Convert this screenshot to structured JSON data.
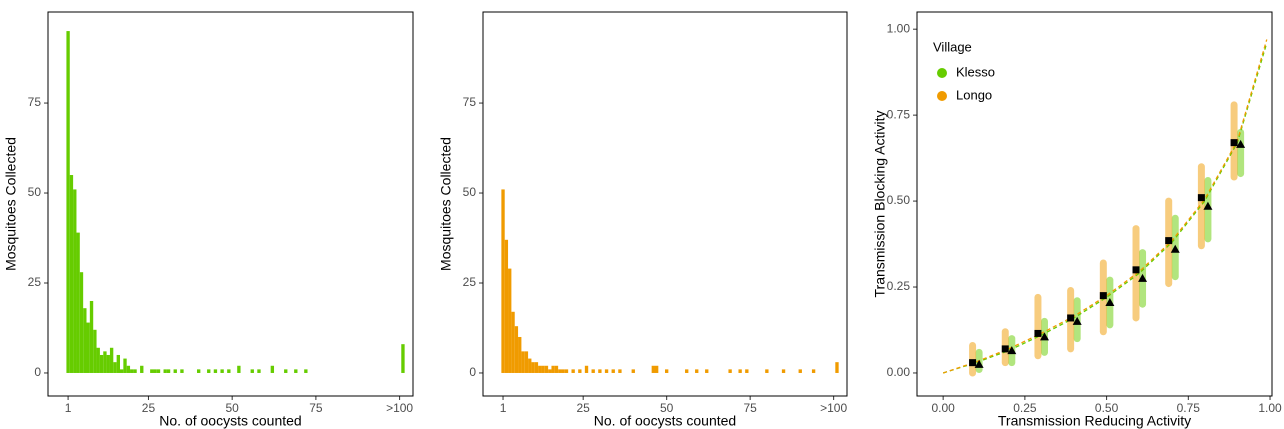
{
  "chart_data": [
    {
      "type": "bar",
      "color": "#66cc00",
      "x_label": "No. of oocysts counted",
      "y_label": "Mosquitoes Collected",
      "x": [
        1,
        2,
        3,
        4,
        5,
        6,
        7,
        8,
        9,
        10,
        11,
        12,
        13,
        14,
        15,
        16,
        17,
        18,
        19,
        20,
        21,
        23,
        26,
        27,
        28,
        30,
        31,
        33,
        35,
        40,
        43,
        45,
        47,
        49,
        52,
        56,
        58,
        62,
        66,
        69,
        72,
        101
      ],
      "values": [
        95,
        55,
        51,
        39,
        28,
        18,
        14,
        20,
        12,
        7,
        5,
        6,
        5,
        7,
        3,
        5,
        1,
        4,
        2,
        1,
        1,
        2,
        1,
        1,
        1,
        1,
        1,
        1,
        1,
        1,
        1,
        1,
        1,
        1,
        2,
        1,
        1,
        2,
        1,
        1,
        1,
        8
      ],
      "xlim": [
        -5,
        104
      ],
      "xticks": [
        1,
        25,
        50,
        75,
        {
          "value": 100,
          "label": ">100"
        }
      ],
      "ylim": [
        -6.4,
        100.3
      ],
      "yticks": [
        0,
        25,
        50,
        75
      ]
    },
    {
      "type": "bar",
      "color": "#f09b00",
      "x_label": "No. of oocysts counted",
      "y_label": "Mosquitoes Collected",
      "x": [
        1,
        2,
        3,
        4,
        5,
        6,
        7,
        8,
        9,
        10,
        11,
        12,
        13,
        14,
        15,
        16,
        17,
        18,
        19,
        20,
        22,
        24,
        26,
        28,
        30,
        32,
        34,
        36,
        40,
        46,
        47,
        50,
        56,
        59,
        62,
        69,
        72,
        74,
        80,
        85,
        90,
        94,
        101
      ],
      "values": [
        51,
        37,
        29,
        17,
        13,
        10,
        6,
        6,
        4,
        3,
        3,
        2,
        2,
        2,
        1,
        2,
        2,
        1,
        1,
        1,
        1,
        1,
        2,
        1,
        1,
        1,
        1,
        1,
        1,
        2,
        2,
        1,
        1,
        1,
        1,
        1,
        1,
        1,
        1,
        1,
        1,
        1,
        3
      ],
      "xlim": [
        -5,
        104
      ],
      "xticks": [
        1,
        25,
        50,
        75,
        {
          "value": 100,
          "label": ">100"
        }
      ],
      "ylim": [
        -6.4,
        100.3
      ],
      "yticks": [
        0,
        25,
        50,
        75
      ]
    },
    {
      "type": "scatter",
      "x_label": "Transmission Reducing Activity",
      "y_label": "Transmission Blocking Activity",
      "legend_title": "Village",
      "series": [
        {
          "name": "Klesso",
          "color": "#66cc00",
          "marker": "triangle",
          "x": [
            0.11,
            0.21,
            0.31,
            0.41,
            0.51,
            0.61,
            0.71,
            0.81,
            0.91
          ],
          "low": [
            0.01,
            0.03,
            0.06,
            0.1,
            0.14,
            0.2,
            0.28,
            0.39,
            0.58
          ],
          "high": [
            0.06,
            0.1,
            0.15,
            0.21,
            0.27,
            0.35,
            0.45,
            0.56,
            0.7
          ],
          "mean": [
            0.025,
            0.065,
            0.105,
            0.15,
            0.205,
            0.275,
            0.36,
            0.485,
            0.665
          ],
          "fit": {
            "x": [
              0,
              0.1,
              0.2,
              0.3,
              0.4,
              0.5,
              0.6,
              0.7,
              0.8,
              0.9,
              0.99
            ],
            "y": [
              0,
              0.03,
              0.065,
              0.11,
              0.16,
              0.22,
              0.29,
              0.38,
              0.5,
              0.67,
              0.96
            ]
          }
        },
        {
          "name": "Longo",
          "color": "#f09b00",
          "marker": "square",
          "x": [
            0.09,
            0.19,
            0.29,
            0.39,
            0.49,
            0.59,
            0.69,
            0.79,
            0.89
          ],
          "low": [
            0.0,
            0.03,
            0.05,
            0.07,
            0.12,
            0.16,
            0.26,
            0.37,
            0.57
          ],
          "high": [
            0.08,
            0.12,
            0.22,
            0.24,
            0.32,
            0.42,
            0.5,
            0.6,
            0.78
          ],
          "mean": [
            0.03,
            0.07,
            0.115,
            0.16,
            0.225,
            0.3,
            0.385,
            0.51,
            0.67
          ],
          "fit": {
            "x": [
              0,
              0.1,
              0.2,
              0.3,
              0.4,
              0.5,
              0.6,
              0.7,
              0.8,
              0.9,
              0.99
            ],
            "y": [
              0,
              0.032,
              0.07,
              0.115,
              0.165,
              0.225,
              0.295,
              0.385,
              0.505,
              0.675,
              0.97
            ]
          }
        }
      ],
      "xlim": [
        -0.08,
        1.006
      ],
      "xticks": [
        {
          "value": 0,
          "label": "0.00"
        },
        {
          "value": 0.25,
          "label": "0.25"
        },
        {
          "value": 0.5,
          "label": "0.50"
        },
        {
          "value": 0.75,
          "label": "0.75"
        },
        {
          "value": 1,
          "label": "1.00"
        }
      ],
      "ylim": [
        -0.067,
        1.05
      ],
      "yticks": [
        {
          "value": 0,
          "label": "0.00"
        },
        {
          "value": 0.25,
          "label": "0.25"
        },
        {
          "value": 0.5,
          "label": "0.50"
        },
        {
          "value": 0.75,
          "label": "0.75"
        },
        {
          "value": 1,
          "label": "1.00"
        }
      ]
    }
  ]
}
